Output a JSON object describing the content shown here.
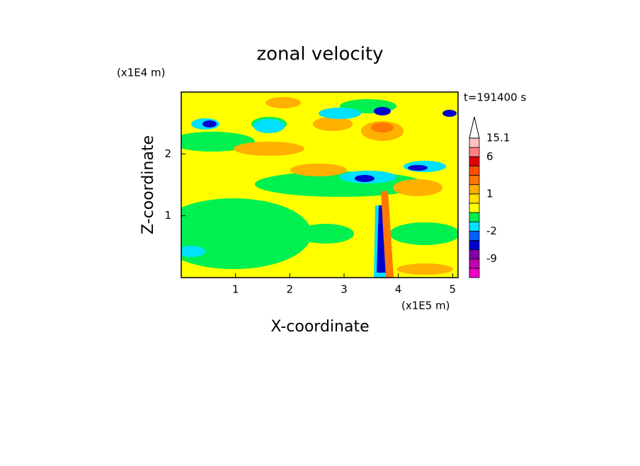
{
  "chart_data": {
    "type": "contour",
    "title": "zonal velocity",
    "x_label": "X-coordinate",
    "y_label": "Z-coordinate",
    "x_unit": "(x1E5 m)",
    "y_unit": "(x1E4 m)",
    "annotation": "t=191400 s",
    "xlim": [
      0,
      5.1
    ],
    "xticks": [
      1,
      2,
      3,
      4,
      5
    ],
    "ylim": [
      0,
      3
    ],
    "yticks": [
      1,
      2
    ],
    "colorbar": {
      "levels": [
        -15,
        -12,
        -9,
        -6,
        -3,
        -2,
        -1,
        0,
        0.5,
        1,
        2,
        3,
        4,
        6,
        10,
        15.1
      ],
      "colors": [
        "#f000c8",
        "#c000b0",
        "#8000a8",
        "#0000d0",
        "#0060ff",
        "#00e0ff",
        "#00f050",
        "#ffff00",
        "#ffe000",
        "#ffb000",
        "#ff7800",
        "#ff5000",
        "#e00000",
        "#ff8080",
        "#ffc0c0"
      ],
      "ticks": [
        -9,
        -2,
        1,
        6,
        15.1
      ]
    }
  }
}
